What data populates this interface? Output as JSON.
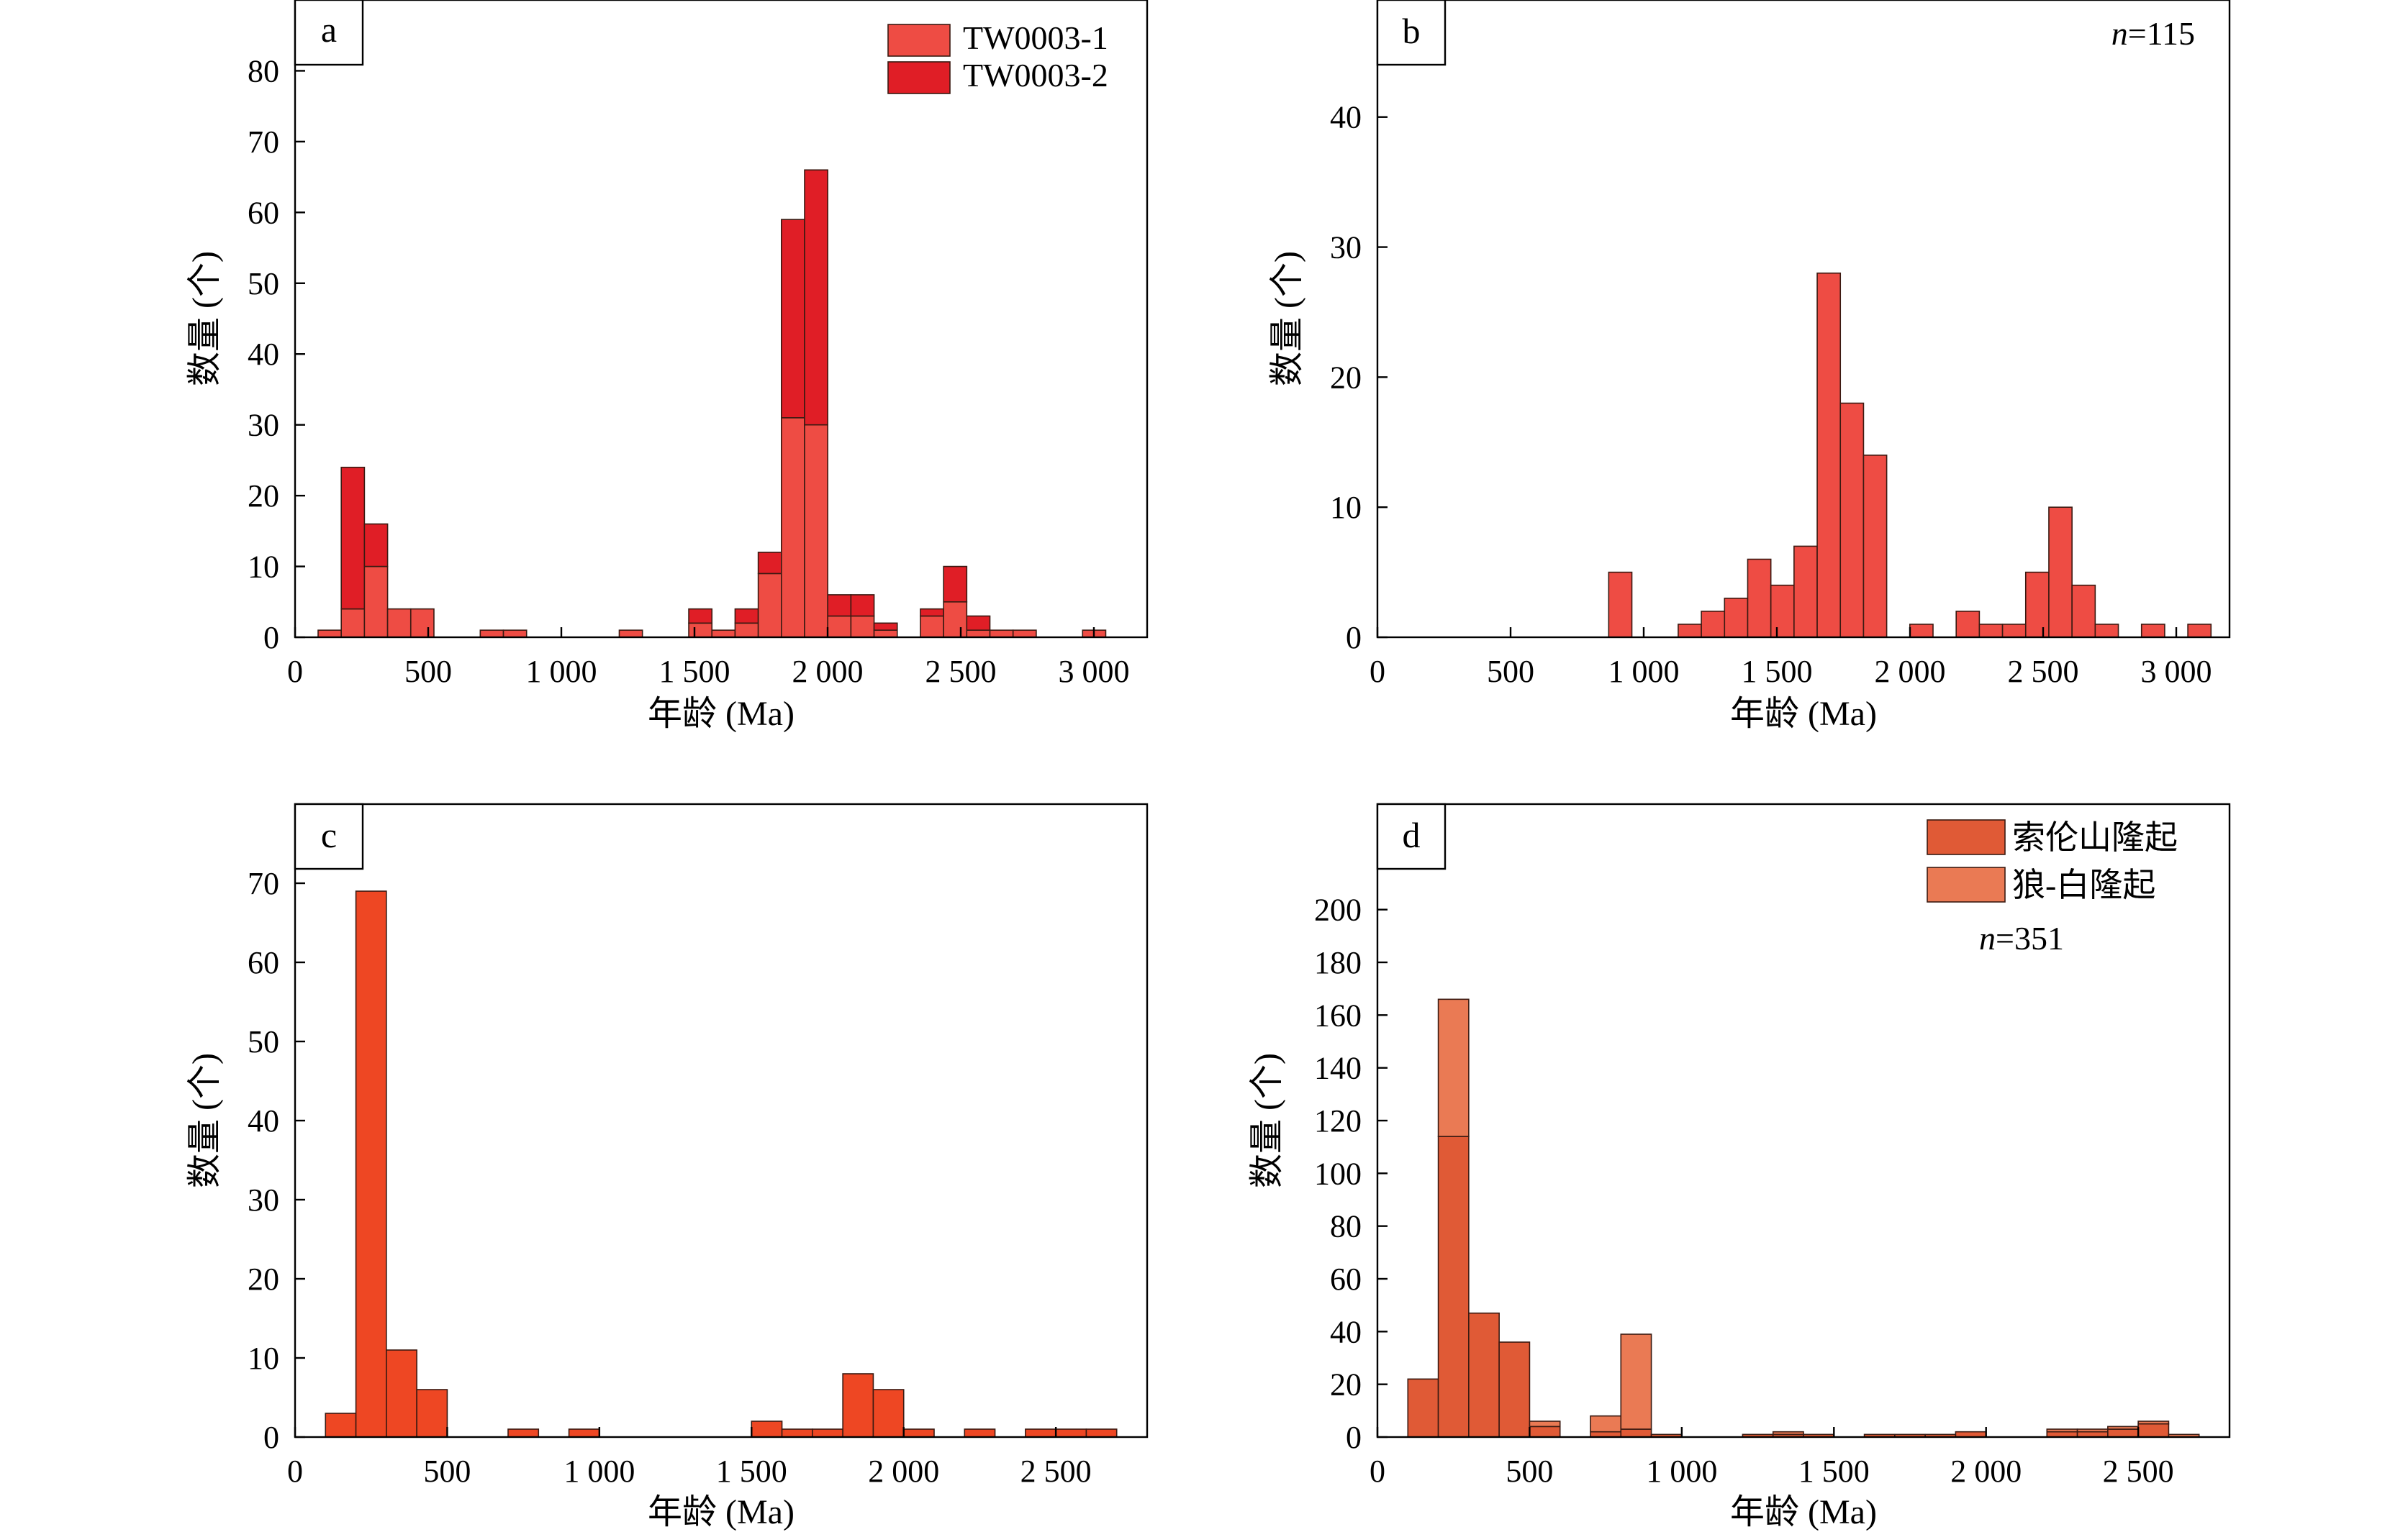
{
  "colors": {
    "tw1": "#ee4c44",
    "tw2": "#e01e26",
    "b": "#ee4c44",
    "c": "#ee4723",
    "d_main": "#e05a36",
    "d_second": "#ea7a54",
    "frame": "#000000"
  },
  "chart_data": [
    {
      "id": "a",
      "type": "bar",
      "stacked": true,
      "panel_label": "a",
      "xlabel": "年龄 (Ma)",
      "ylabel": "数量 (个)",
      "xlim": [
        0,
        3200
      ],
      "ylim": [
        0,
        90
      ],
      "xticks": [
        0,
        500,
        1000,
        1500,
        2000,
        2500,
        3000
      ],
      "xtick_labels": [
        "0",
        "500",
        "1 000",
        "1 500",
        "2 000",
        "2 500",
        "3 000"
      ],
      "yticks": [
        0,
        10,
        20,
        30,
        40,
        50,
        60,
        70,
        80
      ],
      "ytick_labels": [
        "0",
        "10",
        "20",
        "30",
        "40",
        "50",
        "60",
        "70",
        "80"
      ],
      "bin_width": 87,
      "legend": "top-right",
      "n_label": "",
      "x": [
        130,
        217,
        304,
        391,
        478,
        739,
        826,
        1261,
        1522,
        1609,
        1696,
        1783,
        1870,
        1957,
        2044,
        2131,
        2218,
        2392,
        2479,
        2566,
        2653,
        2740,
        3001
      ],
      "series": [
        {
          "name": "TW0003-1",
          "color_key": "tw1",
          "values": [
            1,
            4,
            10,
            4,
            4,
            1,
            1,
            1,
            2,
            1,
            2,
            9,
            31,
            30,
            3,
            3,
            1,
            3,
            5,
            1,
            1,
            1,
            1
          ]
        },
        {
          "name": "TW0003-2",
          "color_key": "tw2",
          "values": [
            0,
            20,
            6,
            0,
            0,
            0,
            0,
            0,
            2,
            0,
            2,
            3,
            28,
            36,
            3,
            3,
            1,
            1,
            5,
            2,
            0,
            0,
            0
          ]
        }
      ]
    },
    {
      "id": "b",
      "type": "bar",
      "stacked": false,
      "panel_label": "b",
      "xlabel": "年龄 (Ma)",
      "ylabel": "数量 (个)",
      "xlim": [
        0,
        3200
      ],
      "ylim": [
        0,
        49
      ],
      "xticks": [
        0,
        500,
        1000,
        1500,
        2000,
        2500,
        3000
      ],
      "xtick_labels": [
        "0",
        "500",
        "1 000",
        "1 500",
        "2 000",
        "2 500",
        "3 000"
      ],
      "yticks": [
        0,
        10,
        20,
        30,
        40
      ],
      "ytick_labels": [
        "0",
        "10",
        "20",
        "30",
        "40"
      ],
      "bin_width": 87,
      "legend": "",
      "n_label": "n=115",
      "n_italic": "n",
      "n_rest": "=115",
      "x": [
        912,
        1173,
        1260,
        1347,
        1434,
        1521,
        1608,
        1695,
        1782,
        1869,
        2043,
        2217,
        2304,
        2391,
        2478,
        2565,
        2652,
        2739,
        2913,
        3087
      ],
      "series": [
        {
          "name": "",
          "color_key": "b",
          "values": [
            5,
            1,
            2,
            3,
            6,
            4,
            7,
            28,
            18,
            14,
            1,
            2,
            1,
            1,
            5,
            10,
            4,
            1,
            1,
            1
          ]
        }
      ]
    },
    {
      "id": "c",
      "type": "bar",
      "stacked": false,
      "panel_label": "c",
      "xlabel": "年龄 (Ma)",
      "ylabel": "数量 (个)",
      "xlim": [
        0,
        2800
      ],
      "ylim": [
        0,
        80
      ],
      "xticks": [
        0,
        500,
        1000,
        1500,
        2000,
        2500
      ],
      "xtick_labels": [
        "0",
        "500",
        "1 000",
        "1 500",
        "2 000",
        "2 500"
      ],
      "yticks": [
        0,
        10,
        20,
        30,
        40,
        50,
        60,
        70
      ],
      "ytick_labels": [
        "0",
        "10",
        "20",
        "30",
        "40",
        "50",
        "60",
        "70"
      ],
      "bin_width": 100,
      "legend": "",
      "n_label": "",
      "x": [
        150,
        250,
        350,
        450,
        750,
        950,
        1550,
        1650,
        1750,
        1850,
        1950,
        2050,
        2250,
        2450,
        2550,
        2650
      ],
      "series": [
        {
          "name": "",
          "color_key": "c",
          "values": [
            3,
            69,
            11,
            6,
            1,
            1,
            2,
            1,
            1,
            8,
            6,
            1,
            1,
            1,
            1,
            1
          ]
        }
      ]
    },
    {
      "id": "d",
      "type": "bar",
      "stacked": true,
      "panel_label": "d",
      "xlabel": "年龄 (Ma)",
      "ylabel": "数量 (个)",
      "xlim": [
        0,
        2800
      ],
      "ylim": [
        0,
        240
      ],
      "xticks": [
        0,
        500,
        1000,
        1500,
        2000,
        2500
      ],
      "xtick_labels": [
        "0",
        "500",
        "1 000",
        "1 500",
        "2 000",
        "2 500"
      ],
      "yticks": [
        0,
        20,
        40,
        60,
        80,
        100,
        120,
        140,
        160,
        180,
        200
      ],
      "ytick_labels": [
        "0",
        "20",
        "40",
        "60",
        "80",
        "100",
        "120",
        "140",
        "160",
        "180",
        "200"
      ],
      "bin_width": 100,
      "legend": "top-right",
      "n_label": "n=351",
      "n_italic": "n",
      "n_rest": "=351",
      "x": [
        150,
        250,
        350,
        450,
        550,
        750,
        850,
        950,
        1250,
        1350,
        1450,
        1650,
        1750,
        1850,
        1950,
        2250,
        2350,
        2450,
        2550,
        2650
      ],
      "series": [
        {
          "name": "索伦山隆起",
          "color_key": "d_main",
          "values": [
            22,
            114,
            47,
            36,
            4,
            2,
            3,
            1,
            1,
            1,
            1,
            1,
            1,
            1,
            2,
            2,
            2,
            3,
            5,
            0
          ]
        },
        {
          "name": "狼-白隆起",
          "color_key": "d_second",
          "values": [
            0,
            52,
            0,
            0,
            2,
            6,
            36,
            0,
            0,
            1,
            0,
            0,
            0,
            0,
            0,
            1,
            1,
            1,
            1,
            1
          ]
        }
      ]
    }
  ]
}
